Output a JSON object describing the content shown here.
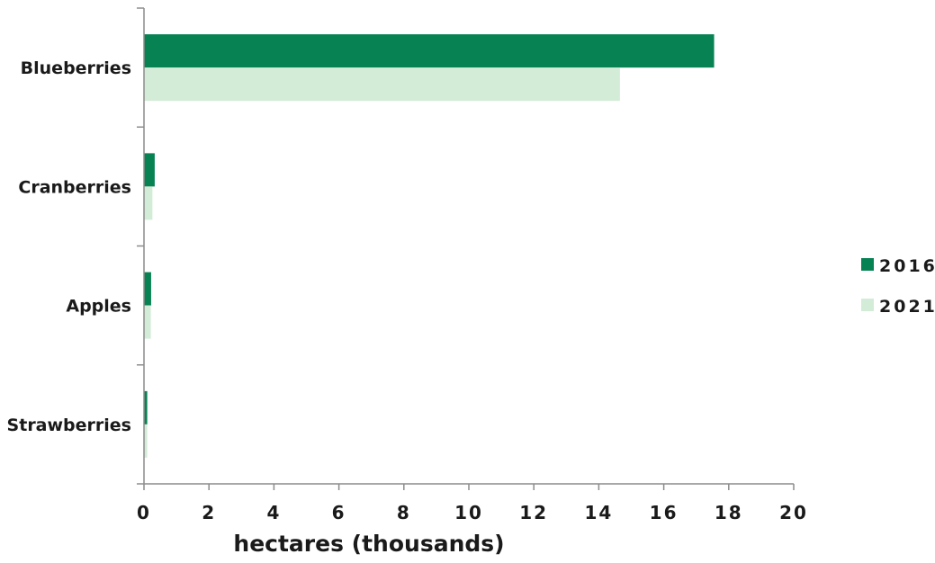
{
  "chart_data": {
    "type": "bar",
    "orientation": "horizontal",
    "categories": [
      "Blueberries",
      "Cranberries",
      "Apples",
      "Strawberries"
    ],
    "series": [
      {
        "name": "2016",
        "color": "#078253",
        "values": [
          17.55,
          0.33,
          0.22,
          0.1
        ]
      },
      {
        "name": "2021",
        "color": "#d3ecd8",
        "values": [
          14.65,
          0.26,
          0.21,
          0.1
        ]
      }
    ],
    "xlabel": "hectares (thousands)",
    "ylabel": "",
    "xlim": [
      0,
      20
    ],
    "xticks": [
      0,
      2,
      4,
      6,
      8,
      10,
      12,
      14,
      16,
      18,
      20
    ],
    "xtick_labels": [
      "0",
      "2",
      "4",
      "6",
      "8",
      "10",
      "12",
      "14",
      "16",
      "18",
      "20"
    ],
    "grid": false,
    "legend_position": "right"
  }
}
